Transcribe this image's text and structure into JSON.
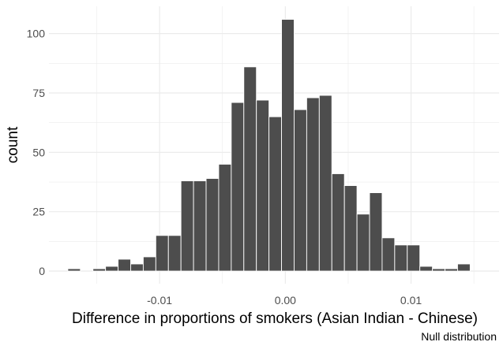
{
  "chart_data": {
    "type": "bar",
    "xlabel": "Difference in proportions of smokers (Asian Indian - Chinese)",
    "ylabel": "count",
    "caption": "Null distribution",
    "xlim": [
      -0.0188,
      0.017
    ],
    "ylim": [
      -5.3,
      111.5
    ],
    "bin_width": 0.001,
    "x_ticks": [
      {
        "value": -0.01,
        "label": "-0.01"
      },
      {
        "value": 0.0,
        "label": "0.00"
      },
      {
        "value": 0.01,
        "label": "0.01"
      }
    ],
    "y_ticks": [
      {
        "value": 0,
        "label": "0"
      },
      {
        "value": 25,
        "label": "25"
      },
      {
        "value": 50,
        "label": "50"
      },
      {
        "value": 75,
        "label": "75"
      },
      {
        "value": 100,
        "label": "100"
      }
    ],
    "grid": true,
    "x": [
      -0.0168,
      -0.0158,
      -0.0148,
      -0.0138,
      -0.0128,
      -0.0118,
      -0.0108,
      -0.0098,
      -0.0088,
      -0.0078,
      -0.0068,
      -0.0058,
      -0.0048,
      -0.0038,
      -0.0028,
      -0.0018,
      -0.0008,
      0.0002,
      0.0012,
      0.0022,
      0.0032,
      0.0042,
      0.0052,
      0.0062,
      0.0072,
      0.0082,
      0.0092,
      0.0102,
      0.0112,
      0.0122,
      0.0132,
      0.0142,
      0.0152
    ],
    "values": [
      1,
      0,
      1,
      2,
      5,
      3,
      6,
      15,
      15,
      38,
      38,
      39,
      45,
      71,
      86,
      72,
      65,
      106,
      68,
      73,
      74,
      41,
      36,
      24,
      33,
      14,
      11,
      11,
      2,
      1,
      1,
      3,
      0
    ],
    "bar_color": "#4d4d4d",
    "bar_outline": "#ffffff",
    "grid_color": "#ebebeb"
  }
}
